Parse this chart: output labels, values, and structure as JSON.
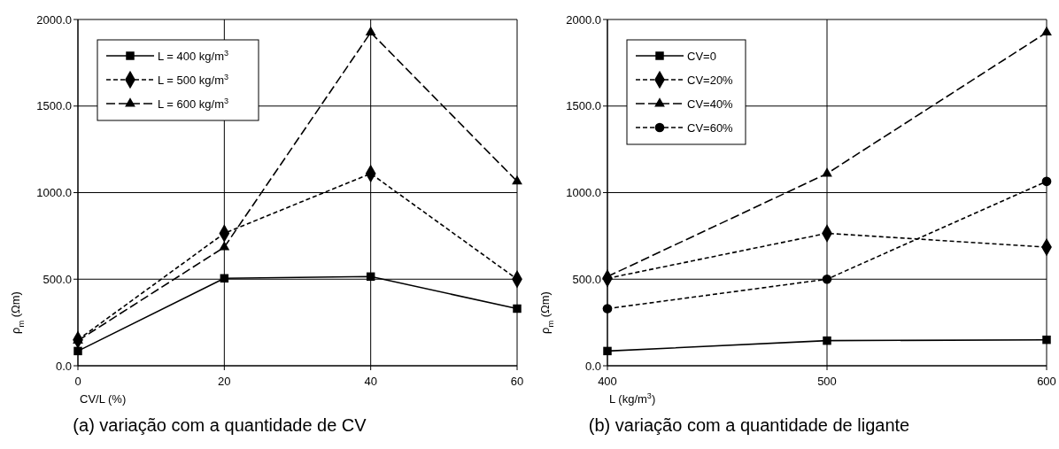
{
  "chart_data": [
    {
      "type": "line",
      "xlabel": "CV/L (%)",
      "ylabel": "ρ$_{m}$ (Ωm)",
      "annotations": [
        "(a) variação com a quantidade de CV"
      ],
      "x": [
        0,
        20,
        40,
        60
      ],
      "xlim": [
        0,
        60
      ],
      "xticks": [
        0,
        20,
        40,
        60
      ],
      "ylim": [
        0,
        2000
      ],
      "yticks": [
        {
          "value": 0,
          "label": "0.0"
        },
        {
          "value": 500,
          "label": "500.0"
        },
        {
          "value": 1000,
          "label": "1000.0"
        },
        {
          "value": 1500,
          "label": "1500.0"
        },
        {
          "value": 2000,
          "label": "2000.0"
        }
      ],
      "grid": true,
      "legend": "top left",
      "series": [
        {
          "name": "L = 400 kg/m$^{3}$",
          "color": "#000000",
          "marker": "square",
          "line_style": "solid",
          "values": [
            85,
            505,
            515,
            330
          ]
        },
        {
          "name": "L = 500 kg/m$^{3}$",
          "color": "#000000",
          "marker": "diamond",
          "line_style": "dotted",
          "values": [
            150,
            765,
            1110,
            500
          ]
        },
        {
          "name": "L = 600 kg/m$^{3}$",
          "color": "#000000",
          "marker": "triangle",
          "line_style": "dashed",
          "values": [
            145,
            685,
            1925,
            1065
          ]
        }
      ]
    },
    {
      "type": "line",
      "xlabel": "L (kg/m$^{3}$)",
      "ylabel": "ρ$_{m}$ (Ωm)",
      "annotations": [
        "(b) variação com a quantidade de ligante"
      ],
      "x": [
        400,
        500,
        600
      ],
      "xlim": [
        400,
        600
      ],
      "xticks": [
        400,
        500,
        600
      ],
      "ylim": [
        0,
        2000
      ],
      "yticks": [
        {
          "value": 0,
          "label": "0.0"
        },
        {
          "value": 500,
          "label": "500.0"
        },
        {
          "value": 1000,
          "label": "1000.0"
        },
        {
          "value": 1500,
          "label": "1500.0"
        },
        {
          "value": 2000,
          "label": "2000.0"
        }
      ],
      "grid": true,
      "legend": "top left",
      "series": [
        {
          "name": "CV=0",
          "color": "#000000",
          "marker": "square",
          "line_style": "solid",
          "values": [
            85,
            145,
            150
          ]
        },
        {
          "name": "CV=20%",
          "color": "#000000",
          "marker": "diamond",
          "line_style": "dotted",
          "values": [
            505,
            765,
            685
          ]
        },
        {
          "name": "CV=40%",
          "color": "#000000",
          "marker": "triangle",
          "line_style": "dashed",
          "values": [
            515,
            1110,
            1925
          ]
        },
        {
          "name": "CV=60%",
          "color": "#000000",
          "marker": "circle",
          "line_style": "dotted",
          "values": [
            330,
            500,
            1065
          ]
        }
      ]
    }
  ]
}
